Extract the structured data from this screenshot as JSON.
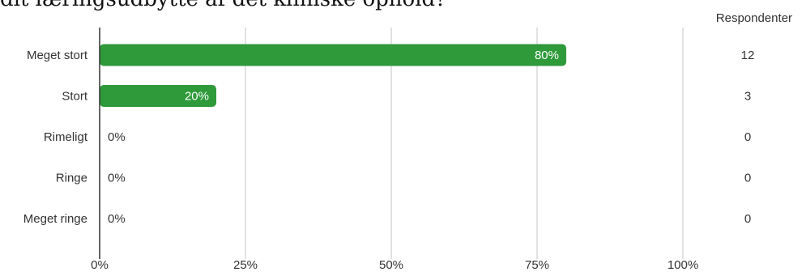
{
  "question": "dit læringsudbytte af det kliniske ophold?",
  "respondents_header": "Respondenter",
  "colors": {
    "bar": "#2e9a3a",
    "grid": "#c4c4c4",
    "axis": "#333333",
    "text": "#333333",
    "bar_label": "#ffffff"
  },
  "chart_data": {
    "type": "bar",
    "orientation": "horizontal",
    "title": "",
    "categories": [
      "Meget stort",
      "Stort",
      "Rimeligt",
      "Ringe",
      "Meget ringe"
    ],
    "values": [
      80,
      20,
      0,
      0,
      0
    ],
    "data_labels": [
      "80%",
      "20%",
      "0%",
      "0%",
      "0%"
    ],
    "respondents": [
      12,
      3,
      0,
      0,
      0
    ],
    "x_ticks": [
      "0%",
      "25%",
      "50%",
      "75%",
      "100%"
    ],
    "xlim": [
      0,
      100
    ],
    "grid": true
  }
}
